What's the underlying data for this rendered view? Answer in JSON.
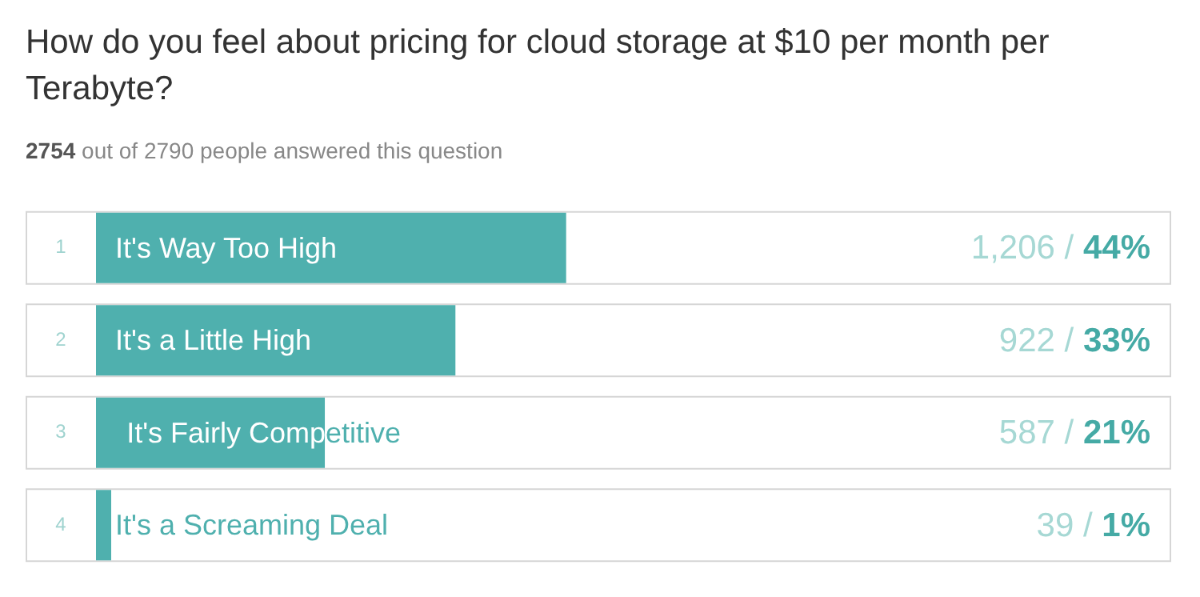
{
  "chart_data": {
    "type": "bar",
    "orientation": "horizontal",
    "title": "How do you feel about pricing for cloud storage at $10 per month per Terabyte?",
    "subtitle": "2754 out of 2790 people answered this question",
    "categories": [
      "It's Way Too High",
      "It's a Little High",
      "It's Fairly Competitive",
      "It's a Screaming Deal"
    ],
    "values": [
      1206,
      922,
      587,
      39
    ],
    "color": "#4fb0ae",
    "value_labels": [
      "1,206 / 44%",
      "922 / 33%",
      "587 / 21%",
      "39 / 1%"
    ],
    "annotations": [
      "1",
      "2",
      "3",
      "4"
    ],
    "tick_labels": false,
    "legend": false
  }
}
